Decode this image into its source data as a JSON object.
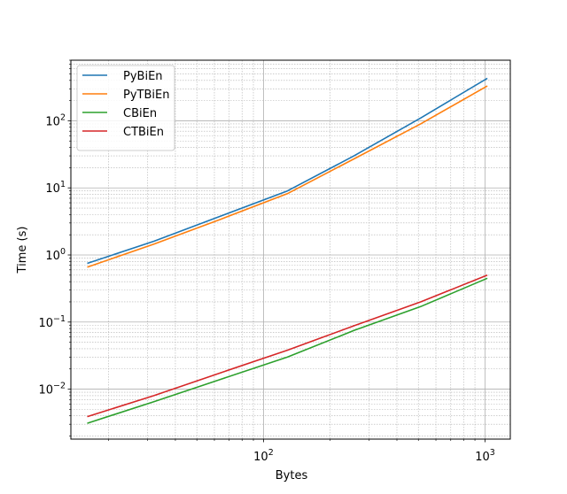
{
  "chart_data": {
    "type": "line",
    "xscale": "log",
    "yscale": "log",
    "xlabel": "Bytes",
    "ylabel": "Time (s)",
    "xlim": [
      13.5,
      1300
    ],
    "ylim": [
      0.0018,
      800
    ],
    "grid": "major and minor, both axes",
    "legend_position": "upper-left",
    "x_ticks": [
      {
        "value": 100,
        "base": "10",
        "exp": "2"
      },
      {
        "value": 1000,
        "base": "10",
        "exp": "3"
      }
    ],
    "y_ticks": [
      {
        "value": 0.01,
        "base": "10",
        "exp": "−2"
      },
      {
        "value": 0.1,
        "base": "10",
        "exp": "−1"
      },
      {
        "value": 1,
        "base": "10",
        "exp": "0"
      },
      {
        "value": 10,
        "base": "10",
        "exp": "1"
      },
      {
        "value": 100,
        "base": "10",
        "exp": "2"
      }
    ],
    "series": [
      {
        "name": "PyBiEn",
        "color": "#1f77b4",
        "points": [
          [
            16,
            0.75
          ],
          [
            32,
            1.6
          ],
          [
            64,
            3.8
          ],
          [
            128,
            9.0
          ],
          [
            256,
            30
          ],
          [
            512,
            110
          ],
          [
            1024,
            430
          ]
        ]
      },
      {
        "name": "PyTBiEn",
        "color": "#ff7f0e",
        "points": [
          [
            16,
            0.66
          ],
          [
            32,
            1.45
          ],
          [
            64,
            3.4
          ],
          [
            128,
            8.2
          ],
          [
            256,
            27
          ],
          [
            512,
            90
          ],
          [
            1024,
            330
          ]
        ]
      },
      {
        "name": "CBiEn",
        "color": "#2ca02c",
        "points": [
          [
            16,
            0.0031
          ],
          [
            32,
            0.0065
          ],
          [
            64,
            0.014
          ],
          [
            128,
            0.03
          ],
          [
            256,
            0.075
          ],
          [
            512,
            0.17
          ],
          [
            1024,
            0.45
          ]
        ]
      },
      {
        "name": "CTBiEn",
        "color": "#d62728",
        "points": [
          [
            16,
            0.0039
          ],
          [
            32,
            0.008
          ],
          [
            64,
            0.0175
          ],
          [
            128,
            0.038
          ],
          [
            256,
            0.088
          ],
          [
            512,
            0.2
          ],
          [
            1024,
            0.5
          ]
        ]
      }
    ]
  }
}
